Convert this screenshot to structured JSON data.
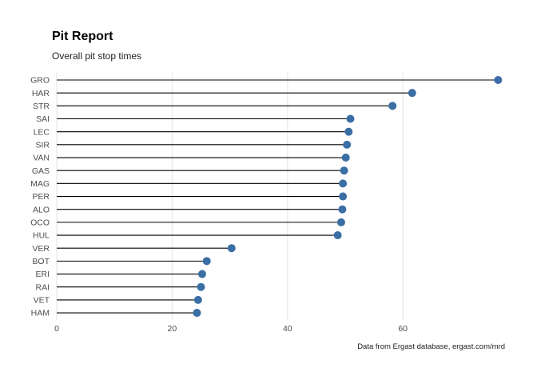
{
  "chart_data": {
    "type": "lollipop",
    "title": "Pit Report",
    "subtitle": "Overall pit stop times",
    "caption": "Data from Ergast database, ergast.com/mrd",
    "xlabel": "",
    "ylabel": "",
    "xlim": [
      0,
      78
    ],
    "x_ticks": [
      0,
      20,
      40,
      60
    ],
    "grid": true,
    "point_color": "#3a6ea5",
    "stem_color": "#000000",
    "categories": [
      "GRO",
      "HAR",
      "STR",
      "SAI",
      "LEC",
      "SIR",
      "VAN",
      "GAS",
      "MAG",
      "PER",
      "ALO",
      "OCO",
      "HUL",
      "VER",
      "BOT",
      "ERI",
      "RAI",
      "VET",
      "HAM"
    ],
    "values": [
      76.5,
      61.6,
      58.2,
      50.9,
      50.6,
      50.3,
      50.1,
      49.8,
      49.6,
      49.6,
      49.5,
      49.3,
      48.7,
      30.3,
      26.0,
      25.2,
      25.0,
      24.5,
      24.3
    ]
  }
}
